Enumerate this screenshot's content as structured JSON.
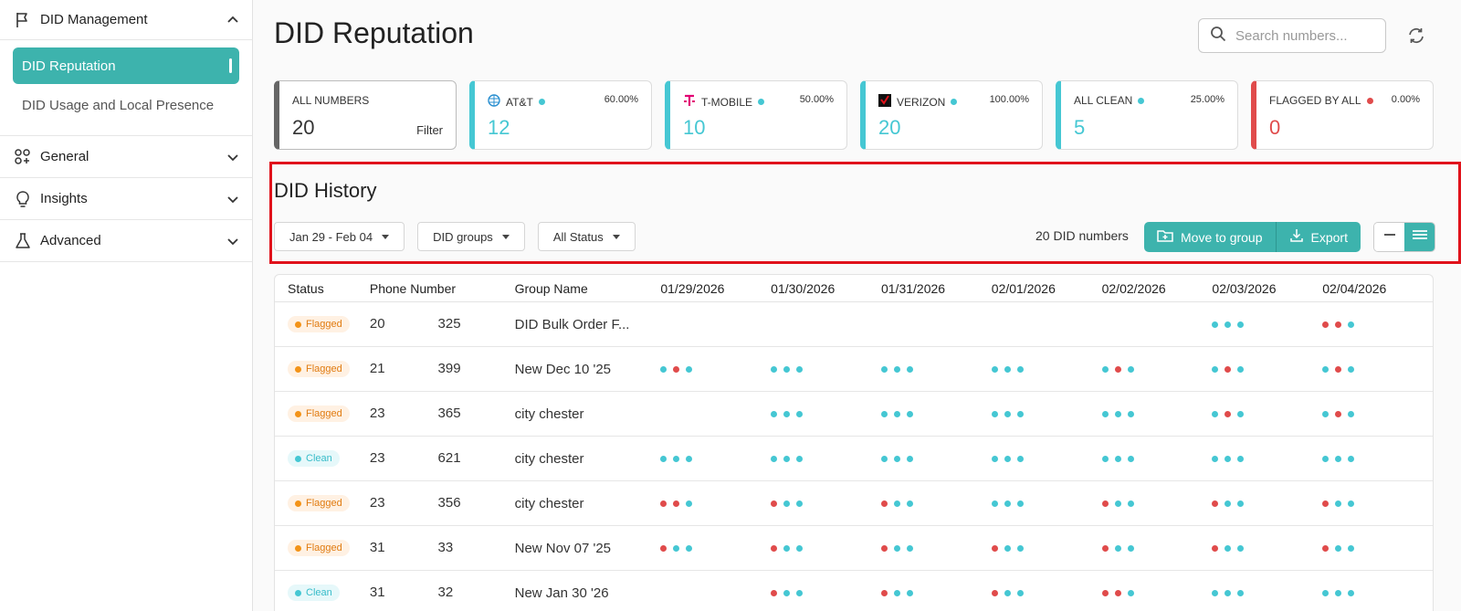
{
  "sidebar": {
    "did_management": "DID Management",
    "did_reputation": "DID Reputation",
    "did_usage": "DID Usage and Local Presence",
    "general": "General",
    "insights": "Insights",
    "advanced": "Advanced"
  },
  "header": {
    "title": "DID Reputation",
    "search_placeholder": "Search numbers..."
  },
  "stats": [
    {
      "label": "ALL NUMBERS",
      "value": "20",
      "pct": "",
      "extra": "Filter"
    },
    {
      "label": "AT&T",
      "value": "12",
      "pct": "60.00%"
    },
    {
      "label": "T-MOBILE",
      "value": "10",
      "pct": "50.00%"
    },
    {
      "label": "VERIZON",
      "value": "20",
      "pct": "100.00%"
    },
    {
      "label": "ALL CLEAN",
      "value": "5",
      "pct": "25.00%"
    },
    {
      "label": "FLAGGED BY ALL",
      "value": "0",
      "pct": "0.00%"
    }
  ],
  "history": {
    "title": "DID History",
    "date_range": "Jan 29 - Feb 04",
    "groups": "DID groups",
    "status": "All Status",
    "count": "20 DID numbers",
    "move_to_group": "Move to group",
    "export": "Export"
  },
  "table": {
    "headers": [
      "Status",
      "Phone Number",
      "Group Name",
      "01/29/2026",
      "01/30/2026",
      "01/31/2026",
      "02/01/2026",
      "02/02/2026",
      "02/03/2026",
      "02/04/2026"
    ],
    "rows": [
      {
        "status": "Flagged",
        "phone_start": "20",
        "phone_end": "325",
        "group": "DID Bulk Order F...",
        "dots": [
          "",
          "",
          "",
          "",
          "",
          "ggg",
          "rrg"
        ]
      },
      {
        "status": "Flagged",
        "phone_start": "21",
        "phone_end": "399",
        "group": "New Dec 10 '25",
        "dots": [
          "grg",
          "ggg",
          "ggg",
          "ggg",
          "grg",
          "grg",
          "grg"
        ]
      },
      {
        "status": "Flagged",
        "phone_start": "23",
        "phone_end": "365",
        "group": "city chester",
        "dots": [
          "",
          "ggg",
          "ggg",
          "ggg",
          "ggg",
          "grg",
          "grg"
        ]
      },
      {
        "status": "Clean",
        "phone_start": "23",
        "phone_end": "621",
        "group": "city chester",
        "dots": [
          "ggg",
          "ggg",
          "ggg",
          "ggg",
          "ggg",
          "ggg",
          "ggg"
        ]
      },
      {
        "status": "Flagged",
        "phone_start": "23",
        "phone_end": "356",
        "group": "city chester",
        "dots": [
          "rrg",
          "rgg",
          "rgg",
          "ggg",
          "rgg",
          "rgg",
          "rgg"
        ]
      },
      {
        "status": "Flagged",
        "phone_start": "31",
        "phone_end": "33",
        "group": "New Nov 07 '25",
        "dots": [
          "rgg",
          "rgg",
          "rgg",
          "rgg",
          "rgg",
          "rgg",
          "rgg"
        ]
      },
      {
        "status": "Clean",
        "phone_start": "31",
        "phone_end": "32",
        "group": "New Jan 30 '26",
        "dots": [
          "",
          "rgg",
          "rgg",
          "rgg",
          "rrg",
          "ggg",
          "ggg"
        ]
      }
    ]
  },
  "colors": {
    "accent": "#3db3ad",
    "clean": "#45c7d3",
    "flagged": "#e04b4b",
    "highlight": "#e0121b"
  }
}
